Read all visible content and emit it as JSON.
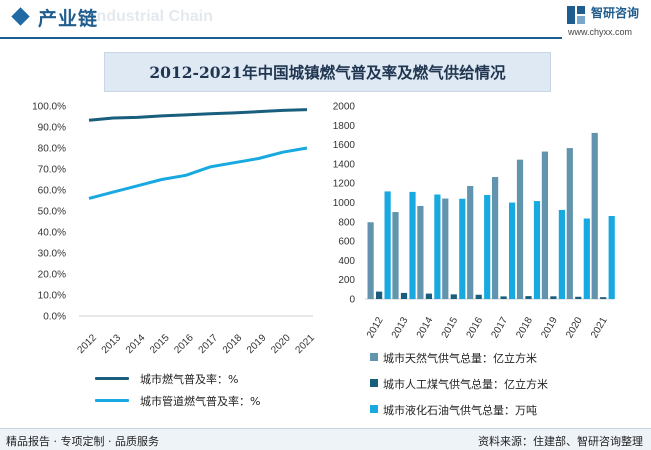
{
  "header": {
    "section_title": "产业链",
    "bg_text": "Industrial Chain",
    "brand_name": "智研咨询",
    "brand_url": "www.chyxx.com"
  },
  "title": "2012-2021年中国城镇燃气普及率及燃气供给情况",
  "footer": {
    "left": "精品报告 · 专项定制 · 品质服务",
    "right": "资料来源：住建部、智研咨询整理"
  },
  "colors": {
    "dark_blue": "#1a5e7e",
    "light_blue": "#18a9e0",
    "steel_blue": "#6294ad",
    "header_blue": "#1f5d8f"
  },
  "chart_data": [
    {
      "type": "line",
      "categories": [
        "2012",
        "2013",
        "2014",
        "2015",
        "2016",
        "2017",
        "2018",
        "2019",
        "2020",
        "2021"
      ],
      "series": [
        {
          "name": "城市燃气普及率：%",
          "values": [
            93.2,
            94.3,
            94.6,
            95.3,
            95.8,
            96.3,
            96.7,
            97.3,
            97.9,
            98.3
          ]
        },
        {
          "name": "城市管道燃气普及率：%",
          "values": [
            56.0,
            59.0,
            62.0,
            65.0,
            67.0,
            71.0,
            73.0,
            75.0,
            78.0,
            80.0
          ]
        }
      ],
      "ylim": [
        0,
        100
      ],
      "yticks": [
        "0.0%",
        "10.0%",
        "20.0%",
        "30.0%",
        "40.0%",
        "50.0%",
        "60.0%",
        "70.0%",
        "80.0%",
        "90.0%",
        "100.0%"
      ],
      "legend": "bottom"
    },
    {
      "type": "bar",
      "categories": [
        "2012",
        "2013",
        "2014",
        "2015",
        "2016",
        "2017",
        "2018",
        "2019",
        "2020",
        "2021"
      ],
      "series": [
        {
          "name": "城市天然气供气总量：亿立方米",
          "values": [
            795,
            901,
            964,
            1041,
            1171,
            1264,
            1444,
            1528,
            1564,
            1721
          ]
        },
        {
          "name": "城市人工煤气供气总量：亿立方米",
          "values": [
            77,
            63,
            56,
            48,
            44,
            27,
            30,
            28,
            23,
            19
          ]
        },
        {
          "name": "城市液化石油气供气总量：万吨",
          "values": [
            1115,
            1110,
            1083,
            1039,
            1078,
            999,
            1015,
            923,
            834,
            860
          ]
        }
      ],
      "ylim": [
        0,
        2000
      ],
      "yticks": [
        "0",
        "200",
        "400",
        "600",
        "800",
        "1000",
        "1200",
        "1400",
        "1600",
        "1800",
        "2000"
      ],
      "legend": "bottom"
    }
  ]
}
